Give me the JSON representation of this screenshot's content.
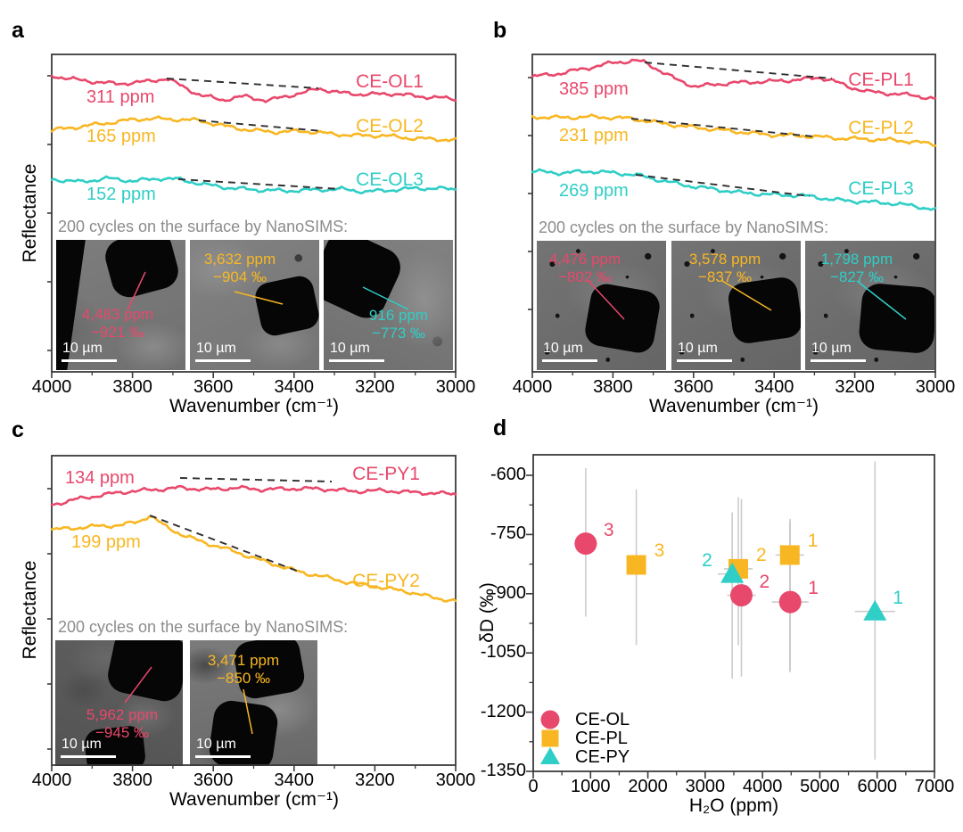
{
  "colors": {
    "ce_ol": "#e8486b",
    "ce_pl": "#f8b722",
    "ce_py": "#2fcec6",
    "error_bar": "#cccccc",
    "dashed_baseline": "#2f2f2f",
    "axis": "#3a3a3a",
    "inset_title_gray": "#8c8c8c",
    "sem_text_white": "#ffffff"
  },
  "chart_data": [
    {
      "type": "line",
      "panel_label": "a",
      "x_axis": {
        "label": "Wavenumber (cm⁻¹)",
        "range": [
          4000,
          3000
        ],
        "ticks": [
          "4000",
          "3800",
          "3600",
          "3400",
          "3200",
          "3000"
        ]
      },
      "y_axis": {
        "label": "Reflectance",
        "note": "arbitrary units, ticks unlabeled"
      },
      "series": [
        {
          "name": "CE-OL1",
          "color_key": "ce_ol",
          "water_label": "311 ppm",
          "shape": "noisy reflectance, slight decline with shallow 3700-3300 band; dashed continuum line above band"
        },
        {
          "name": "CE-OL2",
          "color_key": "ce_pl",
          "water_label": "165 ppm",
          "shape": "noisy, broad maximum near 3750 then gentle decline; dashed continuum 3640-3330"
        },
        {
          "name": "CE-OL3",
          "color_key": "ce_py",
          "water_label": "152 ppm",
          "shape": "noisy, nearly flat with slight decline; dashed continuum 3690-3290"
        }
      ],
      "inset": {
        "title": "200 cycles on the surface by NanoSIMS:",
        "images": [
          {
            "h2o": "4,483 ppm",
            "dD": "−921 ‰",
            "scalebar": "10 µm",
            "color_key": "ce_ol"
          },
          {
            "h2o": "3,632 ppm",
            "dD": "−904 ‰",
            "scalebar": "10 µm",
            "color_key": "ce_pl"
          },
          {
            "h2o": "916 ppm",
            "dD": "−773 ‰",
            "scalebar": "10 µm",
            "color_key": "ce_py"
          }
        ]
      }
    },
    {
      "type": "line",
      "panel_label": "b",
      "x_axis": {
        "label": "Wavenumber (cm⁻¹)",
        "range": [
          4000,
          3000
        ],
        "ticks": [
          "4000",
          "3800",
          "3600",
          "3400",
          "3200",
          "3000"
        ]
      },
      "y_axis": {
        "label": "Reflectance",
        "note": "arbitrary units, ticks unlabeled"
      },
      "series": [
        {
          "name": "CE-PL1",
          "color_key": "ce_ol",
          "water_label": "385 ppm",
          "shape": "rises to peak near 3760 then dips at 3570, recovers, declines after 3250; dashed continuum 3720-3250"
        },
        {
          "name": "CE-PL2",
          "color_key": "ce_pl",
          "water_label": "231 ppm",
          "shape": "gentle continuous decline; dashed continuum 3650-3300"
        },
        {
          "name": "CE-PL3",
          "color_key": "ce_py",
          "water_label": "269 ppm",
          "shape": "steady decline toward 3000; dashed continuum 3680-3310"
        }
      ],
      "inset": {
        "title": "200 cycles on the surface by NanoSIMS:",
        "images": [
          {
            "h2o": "4,476 ppm",
            "dD": "−802 ‰",
            "scalebar": "10 µm",
            "color_key": "ce_ol"
          },
          {
            "h2o": "3,578 ppm",
            "dD": "−837 ‰",
            "scalebar": "10 µm",
            "color_key": "ce_pl"
          },
          {
            "h2o": "1,798 ppm",
            "dD": "−827 ‰",
            "scalebar": "10 µm",
            "color_key": "ce_py"
          }
        ]
      }
    },
    {
      "type": "line",
      "panel_label": "c",
      "x_axis": {
        "label": "Wavenumber (cm⁻¹)",
        "range": [
          4000,
          3000
        ],
        "ticks": [
          "4000",
          "3800",
          "3600",
          "3400",
          "3200",
          "3000"
        ]
      },
      "y_axis": {
        "label": "Reflectance",
        "note": "arbitrary units, ticks unlabeled"
      },
      "series": [
        {
          "name": "CE-PY1",
          "color_key": "ce_ol",
          "water_label": "134 ppm",
          "shape": "rises from 4000, flat plateau 3700-3000; nearly horizontal dashed continuum 3680-3300"
        },
        {
          "name": "CE-PY2",
          "color_key": "ce_pl",
          "water_label": "199 ppm",
          "shape": "peak near 3760 then steep continuous decline; dashed continuum 3760-3380"
        }
      ],
      "inset": {
        "title": "200 cycles on the surface by NanoSIMS:",
        "images": [
          {
            "h2o": "5,962 ppm",
            "dD": "−945 ‰",
            "scalebar": "10 µm",
            "color_key": "ce_ol"
          },
          {
            "h2o": "3,471 ppm",
            "dD": "−850 ‰",
            "scalebar": "10 µm",
            "color_key": "ce_pl"
          }
        ]
      }
    },
    {
      "type": "scatter",
      "panel_label": "d",
      "x_axis": {
        "label": "H₂O (ppm)",
        "range": [
          0,
          7000
        ],
        "ticks": [
          "0",
          "1000",
          "2000",
          "3000",
          "4000",
          "5000",
          "6000",
          "7000"
        ]
      },
      "y_axis": {
        "label": "δD (‰)",
        "range": [
          -600,
          -1350
        ],
        "ticks": [
          "-600",
          "-750",
          "-900",
          "-1050",
          "-1200",
          "-1350"
        ]
      },
      "series": [
        {
          "name": "CE-OL",
          "marker": "circle",
          "color_key": "ce_ol",
          "points": [
            {
              "x": 4483,
              "y": -921,
              "label": "1",
              "y_err": [
                -710,
                -1095
              ],
              "x_err": 320,
              "label_side": "right"
            },
            {
              "x": 3632,
              "y": -904,
              "label": "2",
              "y_err": [
                -660,
                -1110
              ],
              "x_err": 250,
              "label_side": "right"
            },
            {
              "x": 916,
              "y": -773,
              "label": "3",
              "y_err": [
                -582,
                -958
              ],
              "x_err": 200,
              "label_side": "right"
            }
          ]
        },
        {
          "name": "CE-PL",
          "marker": "square",
          "color_key": "ce_pl",
          "points": [
            {
              "x": 4476,
              "y": -802,
              "label": "1",
              "y_err": [
                -716,
                -1099
              ],
              "x_err": 250,
              "label_side": "right"
            },
            {
              "x": 3578,
              "y": -837,
              "label": "2",
              "y_err": [
                -655,
                -1030
              ],
              "x_err": 250,
              "label_side": "right"
            },
            {
              "x": 1798,
              "y": -827,
              "label": "3",
              "y_err": [
                -636,
                -1030
              ],
              "x_err": 150,
              "label_side": "right"
            }
          ]
        },
        {
          "name": "CE-PY",
          "marker": "triangle",
          "color_key": "ce_py",
          "points": [
            {
              "x": 5962,
              "y": -945,
              "label": "1",
              "y_err": [
                -565,
                -1320
              ],
              "x_err": 350,
              "label_side": "right"
            },
            {
              "x": 3471,
              "y": -850,
              "label": "2",
              "y_err": [
                -694,
                -1115
              ],
              "x_err": 250,
              "label_side": "left"
            }
          ]
        },
        {
          "name": "error bars",
          "marker": "line",
          "color_key": "error_bar",
          "note": "light gray vertical/horizontal uncertainty bars on every point"
        }
      ],
      "legend": [
        {
          "name": "CE-OL",
          "marker": "circle",
          "color_key": "ce_ol"
        },
        {
          "name": "CE-PL",
          "marker": "square",
          "color_key": "ce_pl"
        },
        {
          "name": "CE-PY",
          "marker": "triangle",
          "color_key": "ce_py"
        }
      ]
    }
  ]
}
